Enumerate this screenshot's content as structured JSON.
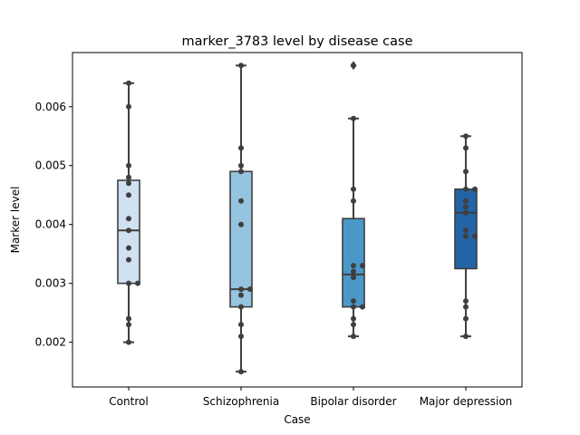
{
  "chart_data": {
    "type": "box",
    "title": "marker_3783 level by disease case",
    "xlabel": "Case",
    "ylabel": "Marker level",
    "ylim": [
      0.00124,
      0.00692
    ],
    "yticks": [
      0.002,
      0.003,
      0.004,
      0.005,
      0.006
    ],
    "ytick_labels": [
      "0.002",
      "0.003",
      "0.004",
      "0.005",
      "0.006"
    ],
    "grid": false,
    "categories": [
      "Control",
      "Schizophrenia",
      "Bipolar disorder",
      "Major depression"
    ],
    "colors": [
      "#d0e1f2",
      "#94c4df",
      "#4a98c9",
      "#2264a5"
    ],
    "boxes": [
      {
        "whisker_low": 0.002,
        "q1": 0.003,
        "median": 0.0039,
        "q3": 0.00475,
        "whisker_high": 0.0064,
        "outliers": []
      },
      {
        "whisker_low": 0.0015,
        "q1": 0.0026,
        "median": 0.0029,
        "q3": 0.0049,
        "whisker_high": 0.0067,
        "outliers": []
      },
      {
        "whisker_low": 0.0021,
        "q1": 0.0026,
        "median": 0.00315,
        "q3": 0.0041,
        "whisker_high": 0.0058,
        "outliers": [
          0.0067
        ]
      },
      {
        "whisker_low": 0.0021,
        "q1": 0.00325,
        "median": 0.0042,
        "q3": 0.0046,
        "whisker_high": 0.0055,
        "outliers": []
      }
    ],
    "points": [
      [
        0.0064,
        0.006,
        0.005,
        0.0048,
        0.0047,
        0.0045,
        0.0041,
        0.0039,
        0.0036,
        0.0034,
        0.003,
        0.003,
        0.0024,
        0.0023,
        0.002
      ],
      [
        0.0067,
        0.0053,
        0.005,
        0.0049,
        0.0044,
        0.004,
        0.0029,
        0.0029,
        0.0028,
        0.0026,
        0.0023,
        0.0021,
        0.0015
      ],
      [
        0.0067,
        0.0058,
        0.0046,
        0.0044,
        0.0033,
        0.0033,
        0.0032,
        0.0031,
        0.0027,
        0.0026,
        0.0026,
        0.0024,
        0.0023,
        0.0021
      ],
      [
        0.0055,
        0.0053,
        0.0049,
        0.0046,
        0.0046,
        0.0044,
        0.0043,
        0.0042,
        0.0039,
        0.0038,
        0.0038,
        0.0027,
        0.0026,
        0.0024,
        0.0021
      ]
    ]
  }
}
